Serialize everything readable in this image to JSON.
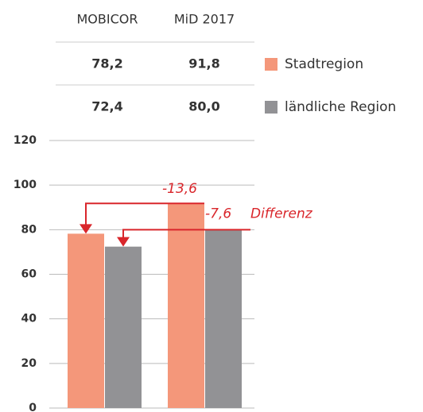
{
  "chart_data": {
    "type": "bar",
    "categories": [
      "MOBICOR",
      "MiD 2017"
    ],
    "series": [
      {
        "name": "Stadtregion",
        "color": "#f4977a",
        "values": [
          78.2,
          91.8
        ],
        "value_labels": [
          "78,2",
          "91,8"
        ]
      },
      {
        "name": "ländliche Region",
        "color": "#929295",
        "values": [
          72.4,
          80.0
        ],
        "value_labels": [
          "72,4",
          "80,0"
        ]
      }
    ],
    "ylim": [
      0,
      120
    ],
    "yticks": [
      0,
      20,
      40,
      60,
      80,
      100,
      120
    ],
    "grid": true,
    "annotations": [
      "-13,6",
      "-7,6",
      "Differenz"
    ]
  }
}
